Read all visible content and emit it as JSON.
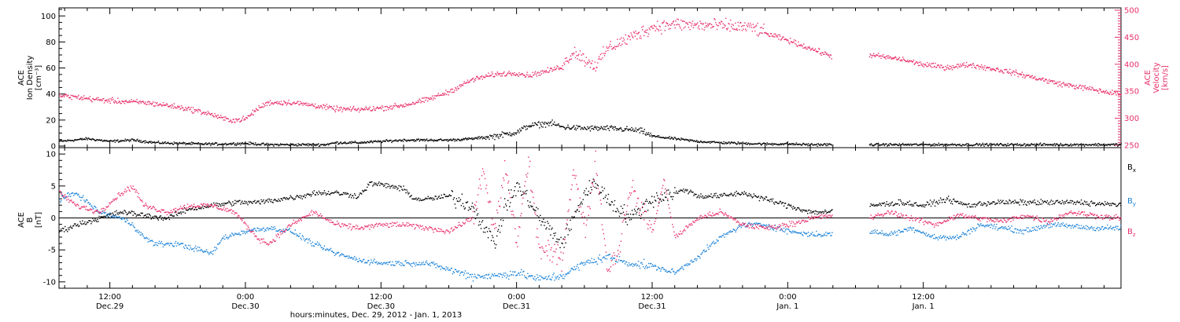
{
  "chart_data": [
    {
      "panel": "top",
      "type": "scatter",
      "ylabel_left": [
        "ACE",
        "Ion Density",
        "[cm⁻³]"
      ],
      "ylabel_right": [
        "ACE",
        "Velocity",
        "[km/s]"
      ],
      "left_axis": {
        "ylim": [
          0,
          105
        ],
        "major_ticks": [
          0,
          20,
          40,
          60,
          80,
          100
        ],
        "color": "#000000"
      },
      "right_axis": {
        "ylim": [
          250,
          500
        ],
        "major_ticks": [
          250,
          300,
          350,
          400,
          450,
          500
        ],
        "color": "#e8306a"
      },
      "x_hours_range": [
        -4.5,
        89.5
      ],
      "gap_hours": [
        63.9,
        67.2
      ],
      "series": [
        {
          "name": "Ion Density",
          "axis": "left",
          "color": "#000000",
          "points": [
            [
              -4.5,
              4
            ],
            [
              -2,
              6
            ],
            [
              0,
              4
            ],
            [
              2,
              5
            ],
            [
              4,
              3
            ],
            [
              6,
              2.5
            ],
            [
              8,
              2
            ],
            [
              10,
              2
            ],
            [
              12,
              2.5
            ],
            [
              14,
              1.5
            ],
            [
              16,
              1.5
            ],
            [
              18,
              1.5
            ],
            [
              19,
              1.5
            ],
            [
              20,
              3
            ],
            [
              22,
              3
            ],
            [
              24,
              4
            ],
            [
              26,
              5
            ],
            [
              28,
              5
            ],
            [
              30,
              5
            ],
            [
              32,
              6
            ],
            [
              34,
              8
            ],
            [
              36,
              11
            ],
            [
              37,
              16
            ],
            [
              38,
              17
            ],
            [
              39,
              18
            ],
            [
              40,
              15
            ],
            [
              42,
              14
            ],
            [
              44,
              14
            ],
            [
              46,
              13
            ],
            [
              47,
              12
            ],
            [
              48,
              8
            ],
            [
              50,
              6
            ],
            [
              52,
              4
            ],
            [
              54,
              3
            ],
            [
              56,
              2.5
            ],
            [
              58,
              2
            ],
            [
              60,
              2
            ],
            [
              62,
              1.5
            ],
            [
              63.9,
              1.5
            ],
            [
              67.2,
              1.5
            ],
            [
              70,
              1.5
            ],
            [
              72,
              1.5
            ],
            [
              76,
              1.5
            ],
            [
              80,
              1.5
            ],
            [
              84,
              1.5
            ],
            [
              88,
              1.5
            ],
            [
              89.5,
              1.5
            ]
          ]
        },
        {
          "name": "Velocity",
          "axis": "right",
          "color": "#e8306a",
          "points": [
            [
              -4.5,
              343
            ],
            [
              -3,
              340
            ],
            [
              -1,
              335
            ],
            [
              1,
              332
            ],
            [
              3,
              330
            ],
            [
              5,
              325
            ],
            [
              7,
              318
            ],
            [
              9,
              308
            ],
            [
              10,
              300
            ],
            [
              11,
              297
            ],
            [
              12,
              300
            ],
            [
              13,
              318
            ],
            [
              14,
              330
            ],
            [
              16,
              330
            ],
            [
              18,
              325
            ],
            [
              20,
              318
            ],
            [
              22,
              317
            ],
            [
              24,
              320
            ],
            [
              26,
              325
            ],
            [
              28,
              335
            ],
            [
              30,
              350
            ],
            [
              32,
              372
            ],
            [
              34,
              382
            ],
            [
              36,
              385
            ],
            [
              37,
              380
            ],
            [
              38,
              385
            ],
            [
              39,
              390
            ],
            [
              40,
              397
            ],
            [
              41,
              425
            ],
            [
              42,
              410
            ],
            [
              43,
              398
            ],
            [
              44,
              430
            ],
            [
              46,
              450
            ],
            [
              48,
              470
            ],
            [
              50,
              475
            ],
            [
              52,
              473
            ],
            [
              54,
              472
            ],
            [
              56,
              470
            ],
            [
              57,
              468
            ],
            [
              58,
              458
            ],
            [
              60,
              445
            ],
            [
              62,
              430
            ],
            [
              63.9,
              415
            ],
            [
              67.2,
              418
            ],
            [
              70,
              410
            ],
            [
              72,
              400
            ],
            [
              74,
              395
            ],
            [
              76,
              400
            ],
            [
              78,
              393
            ],
            [
              80,
              385
            ],
            [
              82,
              375
            ],
            [
              84,
              365
            ],
            [
              86,
              358
            ],
            [
              88,
              350
            ],
            [
              89.5,
              345
            ]
          ]
        }
      ]
    },
    {
      "panel": "bottom",
      "type": "scatter",
      "ylabel_left": [
        "ACE",
        "B",
        "[nT]"
      ],
      "left_axis": {
        "ylim": [
          -11,
          11
        ],
        "major_ticks": [
          -10,
          -5,
          0,
          5,
          10
        ],
        "color": "#000000"
      },
      "x_hours_range": [
        -4.5,
        89.5
      ],
      "gap_hours": [
        63.9,
        67.2
      ],
      "zero_line": true,
      "series": [
        {
          "name": "Bₓ",
          "color": "#000000",
          "points": [
            [
              -4.5,
              -2
            ],
            [
              -3,
              -1
            ],
            [
              -1,
              0
            ],
            [
              1,
              1
            ],
            [
              3,
              0.5
            ],
            [
              5,
              0
            ],
            [
              7,
              1.5
            ],
            [
              9,
              2
            ],
            [
              11,
              2.5
            ],
            [
              13,
              2.5
            ],
            [
              15,
              3
            ],
            [
              17,
              3.5
            ],
            [
              18,
              4
            ],
            [
              20,
              4
            ],
            [
              22,
              3.5
            ],
            [
              23,
              5.5
            ],
            [
              25,
              5
            ],
            [
              26,
              4.5
            ],
            [
              27,
              3
            ],
            [
              28,
              3
            ],
            [
              30,
              3.5
            ],
            [
              32,
              2
            ],
            [
              34,
              -4
            ],
            [
              35,
              2
            ],
            [
              36,
              5
            ],
            [
              37,
              3
            ],
            [
              38,
              0
            ],
            [
              40,
              -4
            ],
            [
              42,
              4
            ],
            [
              43,
              5.5
            ],
            [
              44,
              3
            ],
            [
              46,
              0
            ],
            [
              48,
              3
            ],
            [
              50,
              4
            ],
            [
              51,
              4.5
            ],
            [
              52,
              3.5
            ],
            [
              54,
              3.5
            ],
            [
              56,
              4
            ],
            [
              58,
              3
            ],
            [
              60,
              2
            ],
            [
              62,
              1
            ],
            [
              63.9,
              1
            ],
            [
              67.2,
              2
            ],
            [
              70,
              2.5
            ],
            [
              72,
              2
            ],
            [
              74,
              3
            ],
            [
              76,
              2
            ],
            [
              78,
              2.5
            ],
            [
              80,
              2.5
            ],
            [
              82,
              2.5
            ],
            [
              84,
              2.5
            ],
            [
              86,
              2.5
            ],
            [
              88,
              2.2
            ],
            [
              89.5,
              2.2
            ]
          ]
        },
        {
          "name": "Bᵧ",
          "color": "#1a82d8",
          "points": [
            [
              -4.5,
              3
            ],
            [
              -3,
              4
            ],
            [
              -1,
              1
            ],
            [
              1,
              0
            ],
            [
              2,
              -1
            ],
            [
              3,
              -3
            ],
            [
              4,
              -4
            ],
            [
              6,
              -4
            ],
            [
              8,
              -5
            ],
            [
              9,
              -5.5
            ],
            [
              10,
              -3
            ],
            [
              12,
              -2
            ],
            [
              14,
              -1.5
            ],
            [
              16,
              -2
            ],
            [
              18,
              -4
            ],
            [
              20,
              -5.5
            ],
            [
              22,
              -6.5
            ],
            [
              24,
              -7
            ],
            [
              26,
              -7
            ],
            [
              28,
              -7
            ],
            [
              30,
              -8
            ],
            [
              32,
              -9
            ],
            [
              34,
              -9
            ],
            [
              36,
              -8.5
            ],
            [
              38,
              -9.5
            ],
            [
              40,
              -9
            ],
            [
              42,
              -7
            ],
            [
              44,
              -6
            ],
            [
              46,
              -7
            ],
            [
              48,
              -7.5
            ],
            [
              50,
              -8.5
            ],
            [
              52,
              -6
            ],
            [
              54,
              -3
            ],
            [
              56,
              -1
            ],
            [
              58,
              -1
            ],
            [
              60,
              -2
            ],
            [
              62,
              -2.5
            ],
            [
              63.9,
              -2.5
            ],
            [
              67.2,
              -2
            ],
            [
              69,
              -2.5
            ],
            [
              71,
              -1.5
            ],
            [
              73,
              -3
            ],
            [
              75,
              -3
            ],
            [
              77,
              -1
            ],
            [
              79,
              -1.5
            ],
            [
              81,
              -2
            ],
            [
              83,
              -1
            ],
            [
              85,
              -1.2
            ],
            [
              87,
              -1.5
            ],
            [
              89.5,
              -1.5
            ]
          ]
        },
        {
          "name": "B_z",
          "color": "#e8306a",
          "points": [
            [
              -4.5,
              4
            ],
            [
              -3,
              2
            ],
            [
              -1,
              1
            ],
            [
              1,
              4
            ],
            [
              2,
              5
            ],
            [
              3,
              2
            ],
            [
              5,
              1
            ],
            [
              7,
              2
            ],
            [
              9,
              2
            ],
            [
              11,
              1
            ],
            [
              12,
              -1
            ],
            [
              13,
              -3
            ],
            [
              14,
              -4
            ],
            [
              16,
              -1
            ],
            [
              18,
              1
            ],
            [
              20,
              -1
            ],
            [
              22,
              -1.5
            ],
            [
              24,
              -1
            ],
            [
              26,
              -1
            ],
            [
              28,
              -1.5
            ],
            [
              30,
              -2
            ],
            [
              32,
              0
            ],
            [
              33,
              7
            ],
            [
              34,
              -2
            ],
            [
              35,
              8
            ],
            [
              36,
              -4
            ],
            [
              37,
              9
            ],
            [
              38,
              -5
            ],
            [
              40,
              -6
            ],
            [
              41,
              8
            ],
            [
              42,
              -2
            ],
            [
              43,
              9
            ],
            [
              44,
              -8
            ],
            [
              45,
              -5
            ],
            [
              46,
              5
            ],
            [
              48,
              -2
            ],
            [
              49,
              6
            ],
            [
              50,
              -3
            ],
            [
              52,
              0
            ],
            [
              54,
              1
            ],
            [
              56,
              -1
            ],
            [
              58,
              -1.5
            ],
            [
              60,
              -1
            ],
            [
              62,
              0
            ],
            [
              63.9,
              0.5
            ],
            [
              67.2,
              0
            ],
            [
              69,
              1
            ],
            [
              71,
              0
            ],
            [
              73,
              -1
            ],
            [
              75,
              0.5
            ],
            [
              77,
              0
            ],
            [
              79,
              -0.5
            ],
            [
              81,
              0.5
            ],
            [
              83,
              -0.5
            ],
            [
              85,
              1
            ],
            [
              87,
              0.5
            ],
            [
              89.5,
              0
            ]
          ]
        }
      ]
    }
  ],
  "x_axis": {
    "label": "hours:minutes, Dec. 29, 2012 - Jan. 1, 2013",
    "major_ticks": [
      {
        "hours": 0,
        "time": "12:00",
        "date": "Dec.29"
      },
      {
        "hours": 12,
        "time": "0:00",
        "date": "Dec.30"
      },
      {
        "hours": 24,
        "time": "12:00",
        "date": "Dec.30"
      },
      {
        "hours": 36,
        "time": "0:00",
        "date": "Dec.31"
      },
      {
        "hours": 48,
        "time": "12:00",
        "date": "Dec.31"
      },
      {
        "hours": 60,
        "time": "0:00",
        "date": "Jan. 1"
      },
      {
        "hours": 72,
        "time": "12:00",
        "date": "Jan. 1"
      }
    ]
  },
  "legend_bottom": [
    {
      "label": "B",
      "subscript": "x",
      "color": "#000000"
    },
    {
      "label": "B",
      "subscript": "y",
      "color": "#1a82d8"
    },
    {
      "label": "B",
      "subscript": "z",
      "color": "#e8306a"
    }
  ]
}
